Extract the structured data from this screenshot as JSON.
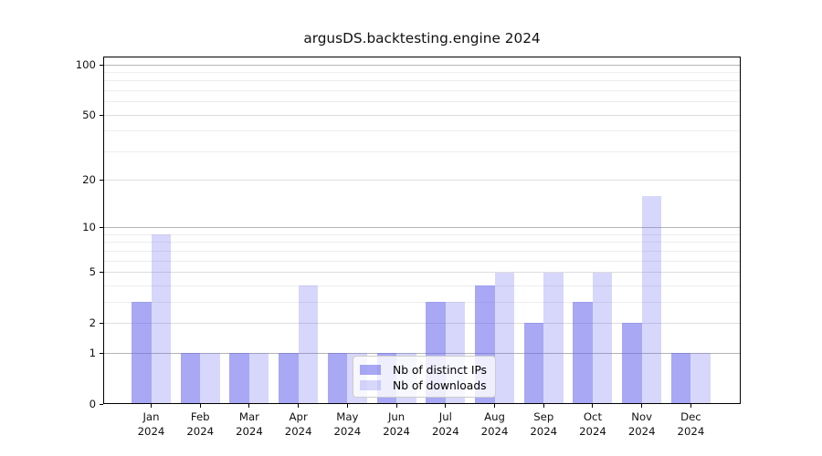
{
  "chart_data": {
    "type": "bar",
    "title": "argusDS.backtesting.engine 2024",
    "x_months": [
      "Jan",
      "Feb",
      "Mar",
      "Apr",
      "May",
      "Jun",
      "Jul",
      "Aug",
      "Sep",
      "Oct",
      "Nov",
      "Dec"
    ],
    "x_year": "2024",
    "series": [
      {
        "name": "Nb of distinct IPs",
        "color": "rgba(102,102,238,0.57)",
        "values": [
          3,
          1,
          1,
          1,
          1,
          1,
          3,
          4,
          2,
          3,
          2,
          1
        ]
      },
      {
        "name": "Nb of downloads",
        "color": "rgba(102,102,238,0.26)",
        "values": [
          9,
          1,
          1,
          4,
          1,
          1,
          3,
          5,
          5,
          5,
          16,
          1
        ]
      }
    ],
    "yscale": "log1p",
    "ylim": [
      0,
      112
    ],
    "ytick_labels": [
      0,
      1,
      2,
      5,
      10,
      20,
      50,
      100
    ],
    "ytick_decades": [
      1,
      10,
      100
    ],
    "ytick_minor": [
      3,
      4,
      6,
      7,
      8,
      9,
      30,
      40,
      60,
      70,
      80,
      90
    ],
    "grid": true,
    "legend_position": "lower center"
  },
  "colors": {
    "figure_bg": "#ffffff",
    "bar_base": "#6666ee",
    "grid_decade": "#b4b4b4",
    "grid_major": "#dddddd",
    "grid_minor": "#ededed",
    "spine": "#000000",
    "legend_bg": "rgba(255,255,255,0.8)",
    "legend_border": "#cccccc",
    "text": "#111111"
  }
}
